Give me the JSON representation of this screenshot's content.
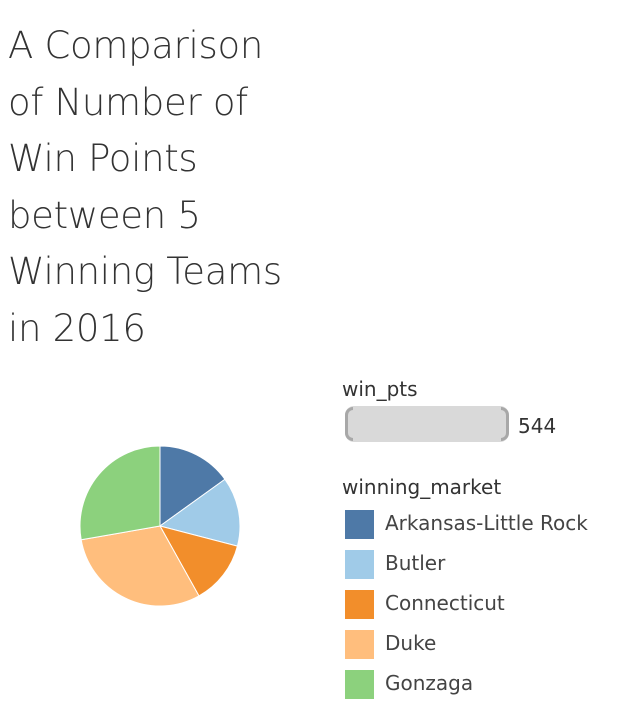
{
  "title_lines": [
    "A Comparison",
    "of Number of",
    "Win Points",
    "between 5",
    "Winning Teams",
    "in 2016"
  ],
  "size_legend": {
    "title": "win_pts",
    "value": "544"
  },
  "chart_data": {
    "type": "pie",
    "title": "A Comparison of Number of Win Points between 5 Winning Teams in 2016",
    "categories": [
      "Arkansas-Little Rock",
      "Butler",
      "Connecticut",
      "Duke",
      "Gonzaga"
    ],
    "values": [
      82,
      76,
      70,
      165,
      151
    ],
    "colors": [
      "#4e79a7",
      "#a0cbe8",
      "#f28e2b",
      "#ffbe7d",
      "#8cd17d"
    ],
    "legend_title": "winning_market",
    "legend_position": "right"
  }
}
